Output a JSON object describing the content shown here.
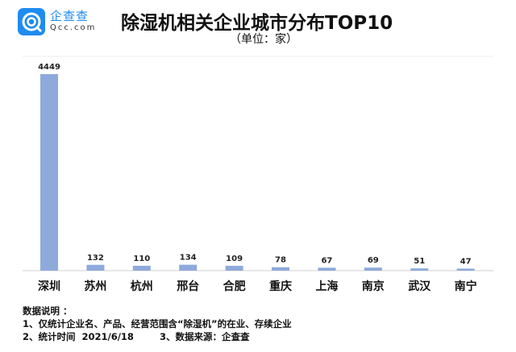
{
  "logo": {
    "name": "企查查",
    "domain": "Qcc.com"
  },
  "chart_data": {
    "type": "bar",
    "title": "除湿机相关企业城市分布TOP10",
    "subtitle": "（单位：家）",
    "categories": [
      "深圳",
      "苏州",
      "杭州",
      "邢台",
      "合肥",
      "重庆",
      "上海",
      "南京",
      "武汉",
      "南宁"
    ],
    "values": [
      4449,
      132,
      110,
      134,
      109,
      78,
      67,
      69,
      51,
      47
    ],
    "ylim": [
      0,
      4449
    ],
    "grid": false,
    "bar_color": "#8eaadb"
  },
  "notes": {
    "heading": "数据说明 ：",
    "line1": "1、仅统计企业名、产品、经营范围含“除湿机”的在业、存续企业",
    "line2": "2、统计时间  2021/6/18        3、数据来源：企查查"
  }
}
